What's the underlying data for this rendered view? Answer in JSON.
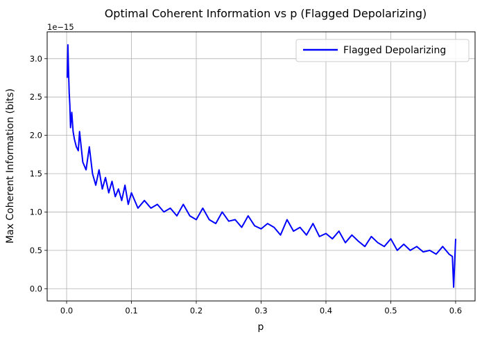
{
  "chart_data": {
    "type": "line",
    "title": "Optimal Coherent Information vs p (Flagged Depolarizing)",
    "xlabel": "p",
    "ylabel": "Max Coherent Information (bits)",
    "y_offset_label": "1e−15",
    "xlim": [
      -0.03,
      0.63
    ],
    "ylim": [
      -0.16,
      3.35
    ],
    "x_ticks": [
      0.0,
      0.1,
      0.2,
      0.3,
      0.4,
      0.5,
      0.6
    ],
    "x_tick_labels": [
      "0.0",
      "0.1",
      "0.2",
      "0.3",
      "0.4",
      "0.5",
      "0.6"
    ],
    "y_ticks": [
      0.0,
      0.5,
      1.0,
      1.5,
      2.0,
      2.5,
      3.0
    ],
    "y_tick_labels": [
      "0.0",
      "0.5",
      "1.0",
      "1.5",
      "2.0",
      "2.5",
      "3.0"
    ],
    "grid": true,
    "legend_position": "top-right",
    "series": [
      {
        "name": "Flagged Depolarizing",
        "color": "#0000ff",
        "x": [
          0.001,
          0.002,
          0.003,
          0.004,
          0.005,
          0.006,
          0.008,
          0.01,
          0.012,
          0.015,
          0.018,
          0.02,
          0.025,
          0.03,
          0.035,
          0.04,
          0.045,
          0.05,
          0.055,
          0.06,
          0.065,
          0.07,
          0.075,
          0.08,
          0.085,
          0.09,
          0.095,
          0.1,
          0.11,
          0.12,
          0.13,
          0.14,
          0.15,
          0.16,
          0.17,
          0.18,
          0.19,
          0.2,
          0.21,
          0.22,
          0.23,
          0.24,
          0.25,
          0.26,
          0.27,
          0.28,
          0.29,
          0.3,
          0.31,
          0.32,
          0.33,
          0.34,
          0.35,
          0.36,
          0.37,
          0.38,
          0.39,
          0.4,
          0.41,
          0.42,
          0.43,
          0.44,
          0.45,
          0.46,
          0.47,
          0.48,
          0.49,
          0.5,
          0.51,
          0.52,
          0.53,
          0.54,
          0.55,
          0.56,
          0.57,
          0.58,
          0.59,
          0.595,
          0.597,
          0.6
        ],
        "y": [
          2.75,
          3.18,
          2.85,
          2.55,
          2.4,
          2.1,
          2.3,
          2.05,
          1.95,
          1.85,
          1.8,
          2.05,
          1.65,
          1.55,
          1.85,
          1.5,
          1.35,
          1.55,
          1.3,
          1.45,
          1.25,
          1.4,
          1.2,
          1.3,
          1.15,
          1.35,
          1.1,
          1.25,
          1.05,
          1.15,
          1.05,
          1.1,
          1.0,
          1.05,
          0.95,
          1.1,
          0.95,
          0.9,
          1.05,
          0.9,
          0.85,
          1.0,
          0.88,
          0.9,
          0.8,
          0.95,
          0.82,
          0.78,
          0.85,
          0.8,
          0.7,
          0.9,
          0.75,
          0.8,
          0.7,
          0.85,
          0.68,
          0.72,
          0.65,
          0.75,
          0.6,
          0.7,
          0.62,
          0.55,
          0.68,
          0.6,
          0.55,
          0.65,
          0.5,
          0.58,
          0.5,
          0.55,
          0.48,
          0.5,
          0.45,
          0.55,
          0.45,
          0.42,
          0.02,
          0.65
        ]
      }
    ]
  }
}
